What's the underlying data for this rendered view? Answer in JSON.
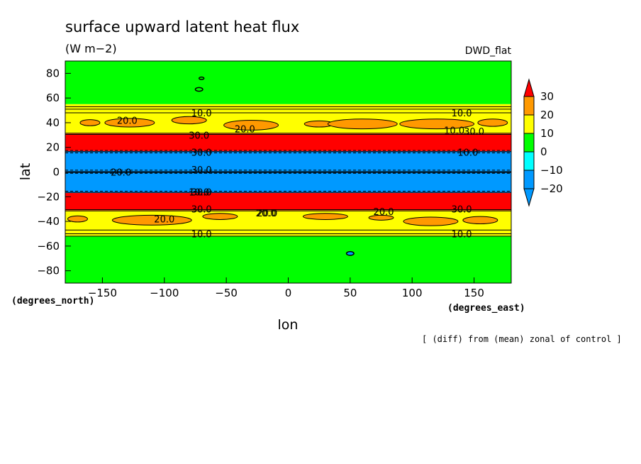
{
  "chart_data": {
    "type": "heatmap",
    "title": "surface upward latent heat flux",
    "units": "(W m−2)",
    "experiment": "DWD_flat",
    "xlabel": "lon",
    "ylabel": "lat",
    "x_units": "(degrees_east)",
    "y_units": "(degrees_north)",
    "note": "[ (diff) from (mean) zonal of control ]",
    "xlim": [
      -180,
      180
    ],
    "ylim": [
      -90,
      90
    ],
    "x_ticks": [
      -150,
      -100,
      -50,
      0,
      50,
      100,
      150
    ],
    "y_ticks": [
      80,
      60,
      40,
      20,
      0,
      -20,
      -40,
      -60,
      -80
    ],
    "colorbar": {
      "levels": [
        30,
        20,
        10,
        0,
        -10,
        -20
      ],
      "colors": [
        "#ff0000",
        "#ff9900",
        "#ffff00",
        "#00ff00",
        "#00ffff",
        "#0099ff"
      ],
      "extend": "both"
    },
    "bands": [
      {
        "lat_from": 90,
        "lat_to": 55,
        "value": "0 to 10"
      },
      {
        "lat_from": 55,
        "lat_to": 31,
        "value": "10 to 30 (patches 20 to 30)"
      },
      {
        "lat_from": 31,
        "lat_to": 17,
        "value": "> 30"
      },
      {
        "lat_from": 17,
        "lat_to": -17,
        "value": "< -20"
      },
      {
        "lat_from": -17,
        "lat_to": -31,
        "value": "> 30"
      },
      {
        "lat_from": -31,
        "lat_to": -52,
        "value": "10 to 30 (patches 20 to 30)"
      },
      {
        "lat_from": -52,
        "lat_to": -90,
        "value": "0 to 10"
      }
    ],
    "contour_labels": [
      "10.0",
      "20.0",
      "30.0",
      "10.0",
      "10.0",
      "20.0",
      "20.0",
      "20.0",
      "30.0",
      "30.0",
      "20.0",
      "10.0",
      "10.0",
      "30.0",
      "20.0",
      "30.0",
      "30.0",
      "20.0",
      "30.0",
      "10.0",
      "10.0"
    ]
  }
}
